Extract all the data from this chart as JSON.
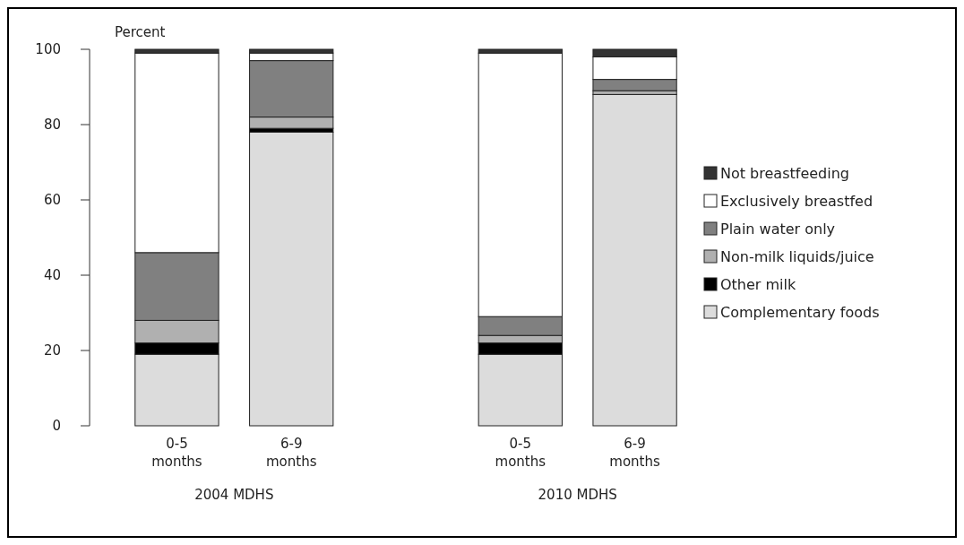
{
  "chart_data": {
    "type": "bar",
    "stacked": true,
    "ylabel": "Percent",
    "categories": [
      "0-5 months",
      "6-9 months",
      null,
      "0-5 months",
      "6-9 months"
    ],
    "series": [
      {
        "name": "Complementary foods",
        "color": "#dcdcdc",
        "values": [
          19,
          78,
          null,
          19,
          88
        ]
      },
      {
        "name": "Other milk",
        "color": "#000000",
        "values": [
          3,
          1,
          null,
          3,
          0
        ]
      },
      {
        "name": "Non-milk liquids/juice",
        "color": "#b0b0b0",
        "values": [
          6,
          3,
          null,
          2,
          1
        ]
      },
      {
        "name": "Plain water only",
        "color": "#808080",
        "values": [
          18,
          15,
          null,
          5,
          3
        ]
      },
      {
        "name": "Exclusively breastfed",
        "color": "#ffffff",
        "values": [
          53,
          2,
          null,
          70,
          6
        ]
      },
      {
        "name": "Not breastfeeding",
        "color": "#333333",
        "values": [
          1,
          1,
          null,
          1,
          2
        ]
      }
    ],
    "ylim": [
      0,
      100
    ],
    "yticks": [
      0,
      20,
      40,
      60,
      80,
      100
    ],
    "legend": "right",
    "annotations": [
      "2004 MDHS",
      "2010 MDHS"
    ]
  }
}
